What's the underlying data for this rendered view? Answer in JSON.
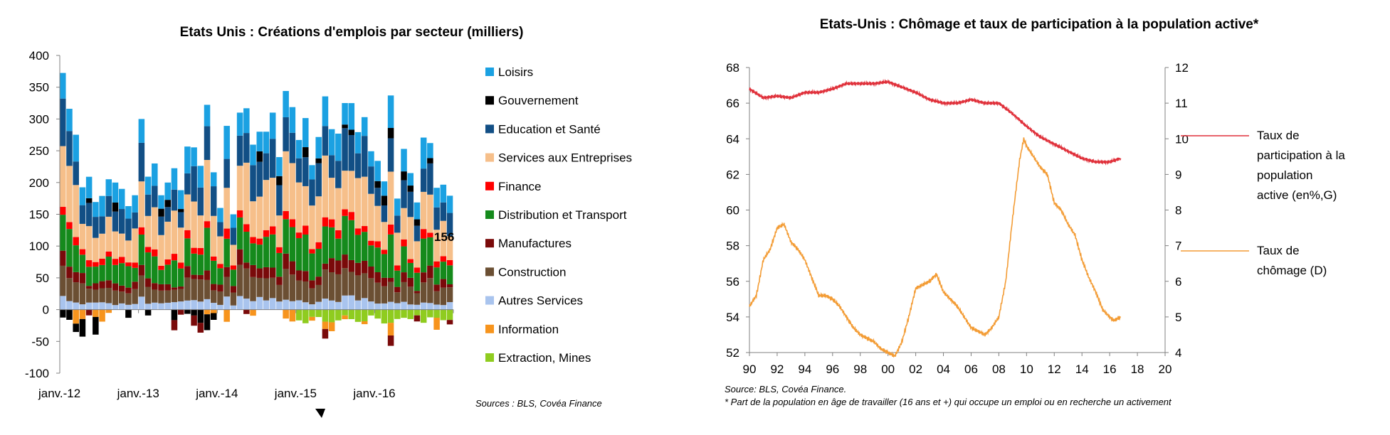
{
  "chart_data": [
    {
      "type": "bar",
      "stacked": true,
      "title": "Etats Unis : Créations d'emplois par secteur (milliers)",
      "ylim": [
        -100,
        400
      ],
      "yticks": [
        "400",
        "350",
        "300",
        "250",
        "200",
        "150",
        "100",
        "50",
        "0",
        "-50",
        "-100"
      ],
      "xtick_labels": [
        "janv.-12",
        "janv.-13",
        "janv.-14",
        "janv.-15",
        "janv.-16"
      ],
      "last_value_label": "156",
      "source": "Sources : BLS, Covéa Finance",
      "legend_position": "right",
      "months": 60,
      "totals": [
        360,
        300,
        240,
        150,
        200,
        130,
        160,
        200,
        200,
        190,
        150,
        180,
        300,
        200,
        230,
        180,
        200,
        190,
        180,
        250,
        230,
        190,
        290,
        200,
        160,
        270,
        150,
        310,
        310,
        250,
        280,
        280,
        310,
        240,
        330,
        300,
        250,
        280,
        210,
        260,
        290,
        250,
        260,
        310,
        310,
        260,
        280,
        240,
        220,
        180,
        280,
        160,
        240,
        200,
        150,
        250,
        250,
        160,
        180,
        156
      ],
      "series": [
        {
          "name": "Loisirs",
          "color": "#1ba1e2"
        },
        {
          "name": "Gouvernement",
          "color": "#000000"
        },
        {
          "name": "Education et Santé",
          "color": "#124f85"
        },
        {
          "name": "Services aux Entreprises",
          "color": "#f6bf8a"
        },
        {
          "name": "Finance",
          "color": "#ff0000"
        },
        {
          "name": "Distribution et Transport",
          "color": "#158a1c"
        },
        {
          "name": "Manufactures",
          "color": "#7a0a0a"
        },
        {
          "name": "Construction",
          "color": "#6b4f33"
        },
        {
          "name": "Autres Services",
          "color": "#a9c4ee"
        },
        {
          "name": "Information",
          "color": "#f7941d"
        },
        {
          "name": "Extraction, Mines",
          "color": "#8fcc1f"
        }
      ],
      "typical_share": {
        "Loisirs": 0.13,
        "Education et Santé": 0.16,
        "Services aux Entreprises": 0.25,
        "Finance": 0.04,
        "Distribution et Transport": 0.16,
        "Manufactures": 0.06,
        "Construction": 0.12,
        "Autres Services": 0.05,
        "Extraction, Mines": 0.03
      }
    },
    {
      "type": "line",
      "title": "Etats-Unis : Chômage et taux de participation à la population active*",
      "x_ticks": [
        "90",
        "92",
        "94",
        "96",
        "98",
        "00",
        "02",
        "04",
        "06",
        "08",
        "10",
        "12",
        "14",
        "16",
        "18",
        "20"
      ],
      "xlim": [
        1990,
        2020
      ],
      "y_left": {
        "lim": [
          52,
          68
        ],
        "ticks": [
          "68",
          "66",
          "64",
          "62",
          "60",
          "58",
          "56",
          "54",
          "52"
        ]
      },
      "y_right": {
        "lim": [
          4,
          12
        ],
        "ticks": [
          "12",
          "11",
          "10",
          "9",
          "8",
          "7",
          "6",
          "5",
          "4"
        ]
      },
      "legend_position": "right",
      "series": [
        {
          "name": "Taux de participation à la population active (en%,G)",
          "legend_lines": [
            "Taux de",
            "participation à la",
            "population",
            "active (en%,G)"
          ],
          "axis": "left",
          "color": "#e0313b",
          "x": [
            1990,
            1991,
            1992,
            1993,
            1994,
            1995,
            1996,
            1997,
            1998,
            1999,
            2000,
            2001,
            2002,
            2003,
            2004,
            2005,
            2006,
            2007,
            2008,
            2009,
            2010,
            2011,
            2012,
            2013,
            2014,
            2015,
            2016,
            2016.8
          ],
          "y": [
            66.8,
            66.3,
            66.4,
            66.3,
            66.6,
            66.6,
            66.8,
            67.1,
            67.1,
            67.1,
            67.2,
            66.9,
            66.6,
            66.2,
            66.0,
            66.0,
            66.2,
            66.0,
            66.0,
            65.4,
            64.7,
            64.1,
            63.7,
            63.3,
            62.9,
            62.7,
            62.7,
            62.9
          ]
        },
        {
          "name": "Taux de chômage (D)",
          "legend_lines": [
            "Taux de",
            "chômage (D)"
          ],
          "axis": "right",
          "color": "#f39c35",
          "x": [
            1990,
            1990.5,
            1991,
            1991.5,
            1992,
            1992.5,
            1993,
            1993.5,
            1994,
            1994.5,
            1995,
            1995.5,
            1996,
            1996.5,
            1997,
            1997.5,
            1998,
            1998.5,
            1999,
            1999.5,
            2000,
            2000.5,
            2001,
            2001.5,
            2002,
            2002.5,
            2003,
            2003.5,
            2004,
            2004.5,
            2005,
            2005.5,
            2006,
            2006.5,
            2007,
            2007.5,
            2008,
            2008.5,
            2009,
            2009.5,
            2009.8,
            2010,
            2010.5,
            2011,
            2011.5,
            2012,
            2012.5,
            2013,
            2013.5,
            2014,
            2014.5,
            2015,
            2015.5,
            2016,
            2016.3,
            2016.8
          ],
          "y": [
            5.3,
            5.6,
            6.6,
            6.9,
            7.5,
            7.6,
            7.1,
            6.9,
            6.6,
            6.1,
            5.6,
            5.6,
            5.5,
            5.3,
            5.0,
            4.7,
            4.5,
            4.4,
            4.3,
            4.1,
            4.0,
            3.9,
            4.3,
            5.0,
            5.8,
            5.9,
            6.0,
            6.2,
            5.7,
            5.5,
            5.3,
            5.0,
            4.7,
            4.6,
            4.5,
            4.7,
            5.0,
            6.0,
            7.8,
            9.4,
            10.0,
            9.8,
            9.5,
            9.2,
            9.0,
            8.2,
            8.0,
            7.6,
            7.3,
            6.6,
            6.1,
            5.7,
            5.2,
            5.0,
            4.9,
            5.0
          ]
        }
      ],
      "source_lines": [
        "Source:  BLS, Covéa Finance.",
        "* Part de la population en âge de travailler (16 ans et +) qui occupe un emploi ou en recherche un activement"
      ]
    }
  ]
}
